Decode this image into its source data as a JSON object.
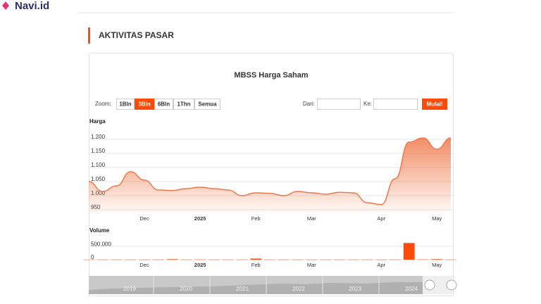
{
  "header": {
    "logo": "Navi.id"
  },
  "section": {
    "title": "AKTIVITAS PASAR"
  },
  "widget": {
    "title": "MBSS Harga Saham",
    "zoom_label": "Zoom:",
    "zoom_buttons": [
      "1Bln",
      "3Bln",
      "6Bln",
      "1Thn",
      "Semua"
    ],
    "active_zoom": "3Bln",
    "from_label": "Dari:",
    "to_label": "Ke:",
    "submit": "Mulai!",
    "navigator_years": [
      "2019",
      "2020",
      "2021",
      "2022",
      "2023",
      "2024"
    ]
  },
  "chart_data": [
    {
      "type": "area",
      "title": "Harga",
      "color": "#f0784a",
      "categories": [
        null,
        null,
        null,
        null,
        "Dec",
        null,
        null,
        null,
        "2025",
        null,
        null,
        null,
        "Feb",
        null,
        null,
        null,
        "Mar",
        null,
        null,
        null,
        null,
        "Apr",
        null,
        null,
        null,
        "May",
        null
      ],
      "values": [
        1050,
        1015,
        1035,
        1085,
        1055,
        1020,
        1018,
        1025,
        1030,
        1025,
        1020,
        1000,
        1010,
        1008,
        1000,
        1015,
        1010,
        1005,
        1012,
        1010,
        975,
        968,
        1060,
        1190,
        1205,
        1165,
        1205
      ],
      "ylim": [
        940,
        1240
      ],
      "yticks": [
        950,
        {
          "value": 1000,
          "label": "1.000"
        },
        {
          "value": 1050,
          "label": "1.050"
        },
        {
          "value": 1100,
          "label": "1.100"
        },
        {
          "value": 1150,
          "label": "1.150"
        },
        {
          "value": 1200,
          "label": "1.200"
        }
      ],
      "grid": true
    },
    {
      "type": "bar",
      "title": "Volume",
      "color": "#ff4a0a",
      "categories": [
        null,
        null,
        null,
        null,
        "Dec",
        null,
        null,
        null,
        "2025",
        null,
        null,
        null,
        "Feb",
        null,
        null,
        null,
        "Mar",
        null,
        null,
        null,
        null,
        "Apr",
        null,
        null,
        null,
        "May",
        null
      ],
      "values": [
        5000,
        5000,
        5000,
        5000,
        5000,
        5000,
        20000,
        5000,
        10000,
        5000,
        5000,
        5000,
        40000,
        5000,
        5000,
        5000,
        5000,
        5000,
        5000,
        5000,
        5000,
        5000,
        5000,
        630000,
        10000,
        20000,
        5000
      ],
      "ylim": [
        0,
        850000
      ],
      "yticks": [
        0,
        {
          "value": 500000,
          "label": "500.000"
        }
      ],
      "grid": true
    }
  ]
}
